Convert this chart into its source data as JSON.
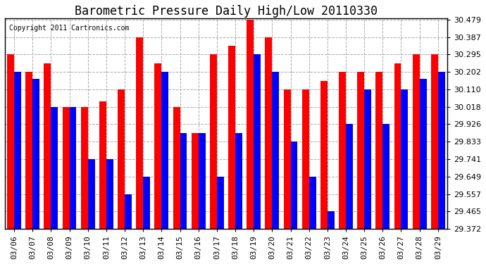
{
  "title": "Barometric Pressure Daily High/Low 20110330",
  "copyright": "Copyright 2011 Cartronics.com",
  "dates": [
    "03/06",
    "03/07",
    "03/08",
    "03/09",
    "03/10",
    "03/11",
    "03/12",
    "03/13",
    "03/14",
    "03/15",
    "03/16",
    "03/17",
    "03/18",
    "03/19",
    "03/20",
    "03/21",
    "03/22",
    "03/23",
    "03/24",
    "03/25",
    "03/26",
    "03/27",
    "03/28",
    "03/29"
  ],
  "highs": [
    30.295,
    30.202,
    30.248,
    30.018,
    30.018,
    30.048,
    30.11,
    30.387,
    30.248,
    30.018,
    29.88,
    30.295,
    30.34,
    30.479,
    30.387,
    30.11,
    30.11,
    30.155,
    30.202,
    30.202,
    30.202,
    30.248,
    30.295,
    30.295
  ],
  "lows": [
    30.202,
    30.165,
    30.018,
    30.018,
    29.741,
    29.741,
    29.557,
    29.649,
    30.202,
    29.88,
    29.88,
    29.649,
    29.88,
    30.295,
    30.202,
    29.833,
    29.649,
    29.465,
    29.926,
    30.11,
    29.926,
    30.11,
    30.165,
    30.202
  ],
  "high_color": "#ff0000",
  "low_color": "#0000ff",
  "bg_color": "#ffffff",
  "plot_bg_color": "#ffffff",
  "grid_color": "#aaaaaa",
  "title_fontsize": 12,
  "tick_fontsize": 8,
  "ymin": 29.372,
  "ymax": 30.479,
  "yticks": [
    29.372,
    29.465,
    29.557,
    29.649,
    29.741,
    29.833,
    29.926,
    30.018,
    30.11,
    30.202,
    30.295,
    30.387,
    30.479
  ]
}
